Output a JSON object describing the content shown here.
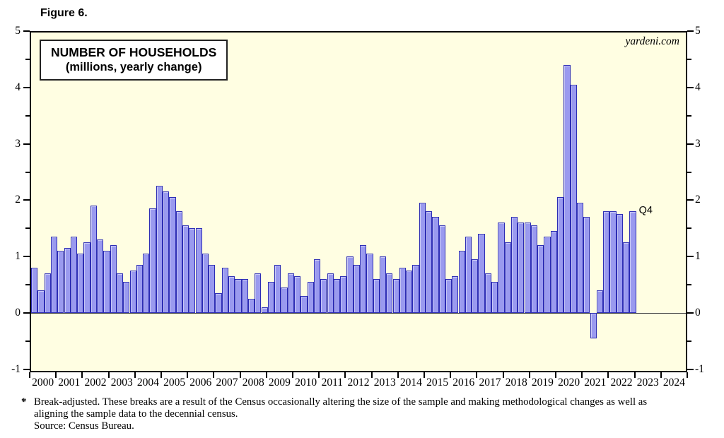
{
  "figure_label": "Figure 6.",
  "watermark": "yardeni.com",
  "annotation_last_point": "Q4",
  "footnote": {
    "asterisk": "*",
    "line1": "Break-adjusted. These breaks are a result of the Census occasionally altering the size of the sample and making methodological changes as well as",
    "line2": "aligning the sample data to the decennial census.",
    "line3": "Source: Census Bureau."
  },
  "colors": {
    "plot_background": "#fffee2",
    "bar_fill": "#9a9aef",
    "bar_border": "#2d2db4",
    "frame": "#000000"
  },
  "chart_data": {
    "type": "bar",
    "title": "NUMBER OF HOUSEHOLDS",
    "subtitle": "(millions, yearly change)",
    "ylabel": "millions, yearly change",
    "ylim": [
      -1,
      5
    ],
    "y_major_ticks": [
      5,
      4,
      3,
      2,
      1,
      0,
      -1
    ],
    "y_minor_tick_step": 0.5,
    "x_year_labels": [
      "2000",
      "2001",
      "2002",
      "2003",
      "2004",
      "2005",
      "2006",
      "2007",
      "2008",
      "2009",
      "2010",
      "2011",
      "2012",
      "2013",
      "2014",
      "2015",
      "2016",
      "2017",
      "2018",
      "2019",
      "2020",
      "2021",
      "2022",
      "2023",
      "2024"
    ],
    "grid": false,
    "legend_position": "none",
    "series": [
      {
        "name": "Number of households, yearly change (quarterly bars)",
        "start_period": "2000Q1",
        "end_period": "2022Q4",
        "values_by_year": {
          "2000": [
            0.8,
            0.4,
            0.7,
            1.35
          ],
          "2001": [
            1.1,
            1.15,
            1.35,
            1.05
          ],
          "2002": [
            1.25,
            1.9,
            1.3,
            1.1
          ],
          "2003": [
            1.2,
            0.7,
            0.55,
            0.75
          ],
          "2004": [
            0.85,
            1.05,
            1.85,
            2.25
          ],
          "2005": [
            2.15,
            2.05,
            1.8,
            1.55
          ],
          "2006": [
            1.5,
            1.5,
            1.05,
            0.85
          ],
          "2007": [
            0.35,
            0.8,
            0.65,
            0.6
          ],
          "2008": [
            0.6,
            0.25,
            0.7,
            0.1
          ],
          "2009": [
            0.55,
            0.85,
            0.45,
            0.7
          ],
          "2010": [
            0.65,
            0.3,
            0.55,
            0.95
          ],
          "2011": [
            0.6,
            0.7,
            0.6,
            0.65
          ],
          "2012": [
            1.0,
            0.85,
            1.2,
            1.05
          ],
          "2013": [
            0.6,
            1.0,
            0.7,
            0.6
          ],
          "2014": [
            0.8,
            0.75,
            0.85,
            1.95
          ],
          "2015": [
            1.8,
            1.7,
            1.55,
            0.6
          ],
          "2016": [
            0.65,
            1.1,
            1.35,
            0.95
          ],
          "2017": [
            1.4,
            0.7,
            0.55,
            1.6
          ],
          "2018": [
            1.25,
            1.7,
            1.6,
            1.6
          ],
          "2019": [
            1.55,
            1.2,
            1.35,
            1.45
          ],
          "2020": [
            2.05,
            4.4,
            4.05,
            1.95
          ],
          "2021": [
            1.7,
            -0.45,
            0.4,
            1.8
          ],
          "2022": [
            1.8,
            1.75,
            1.25,
            1.8
          ]
        }
      }
    ]
  }
}
